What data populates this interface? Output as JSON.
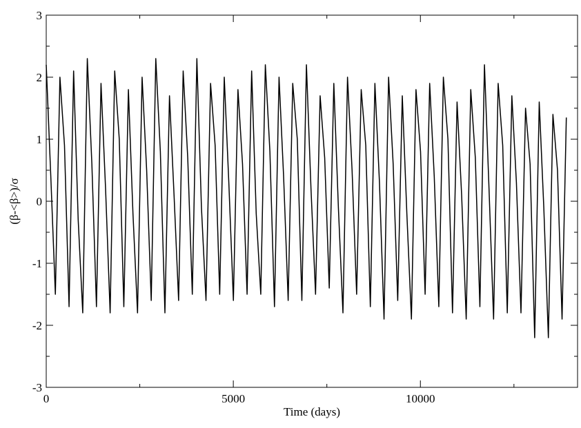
{
  "chart_data": {
    "type": "line",
    "x_label": "Time (days)",
    "y_label": "(β-<β>)/σ",
    "xlim": [
      0,
      14200
    ],
    "ylim": [
      -3,
      3
    ],
    "xticks": [
      0,
      5000,
      10000
    ],
    "yticks": [
      -3,
      -2,
      -1,
      0,
      1,
      2,
      3
    ],
    "xminor_ticks": [
      2500,
      7500,
      12500
    ],
    "yminor_ticks": [
      -2.5,
      -1.5,
      -0.5,
      0.5,
      1.5,
      2.5
    ],
    "x": [
      0,
      122,
      244,
      366,
      488,
      610,
      732,
      854,
      976,
      1098,
      1220,
      1342,
      1464,
      1586,
      1708,
      1830,
      1952,
      2074,
      2196,
      2318,
      2440,
      2562,
      2684,
      2806,
      2928,
      3050,
      3172,
      3294,
      3416,
      3538,
      3660,
      3782,
      3904,
      4026,
      4148,
      4270,
      4392,
      4514,
      4636,
      4758,
      4880,
      5002,
      5124,
      5246,
      5368,
      5490,
      5612,
      5734,
      5856,
      5978,
      6100,
      6222,
      6344,
      6466,
      6588,
      6710,
      6832,
      6954,
      7076,
      7198,
      7320,
      7442,
      7564,
      7686,
      7808,
      7930,
      8052,
      8174,
      8296,
      8418,
      8540,
      8662,
      8784,
      8906,
      9028,
      9150,
      9272,
      9394,
      9516,
      9638,
      9760,
      9882,
      10004,
      10126,
      10248,
      10370,
      10492,
      10614,
      10736,
      10858,
      10980,
      11102,
      11224,
      11346,
      11468,
      11590,
      11712,
      11834,
      11956,
      12078,
      12200,
      12322,
      12444,
      12566,
      12688,
      12810,
      12932,
      13054,
      13176,
      13298,
      13420,
      13542,
      13664,
      13786,
      13900
    ],
    "series": [
      {
        "color": "#000000",
        "values": [
          2.2,
          0.4,
          -1.5,
          2.0,
          0.9,
          -1.7,
          2.1,
          -0.3,
          -1.8,
          2.3,
          0.6,
          -1.7,
          1.9,
          0.2,
          -1.8,
          2.1,
          1.0,
          -1.7,
          1.8,
          -0.2,
          -1.8,
          2.0,
          0.5,
          -1.6,
          2.3,
          0.8,
          -1.8,
          1.7,
          0.1,
          -1.6,
          2.1,
          0.7,
          -1.5,
          2.3,
          -0.1,
          -1.6,
          1.9,
          0.9,
          -1.5,
          2.0,
          0.3,
          -1.6,
          1.8,
          0.6,
          -1.5,
          2.1,
          -0.2,
          -1.5,
          2.2,
          0.8,
          -1.7,
          2.0,
          0.4,
          -1.6,
          1.9,
          1.0,
          -1.6,
          2.2,
          0.2,
          -1.5,
          1.7,
          0.7,
          -1.4,
          1.9,
          -0.1,
          -1.8,
          2.0,
          0.5,
          -1.5,
          1.8,
          0.9,
          -1.7,
          1.9,
          0.3,
          -1.9,
          2.0,
          0.6,
          -1.6,
          1.7,
          -0.2,
          -1.9,
          1.8,
          0.8,
          -1.5,
          1.9,
          0.4,
          -1.7,
          2.0,
          1.0,
          -1.8,
          1.6,
          0.1,
          -1.9,
          1.8,
          0.7,
          -1.7,
          2.2,
          0.2,
          -1.9,
          1.9,
          0.9,
          -1.8,
          1.7,
          0.3,
          -1.8,
          1.5,
          0.6,
          -2.2,
          1.6,
          -0.1,
          -2.2,
          1.4,
          0.5,
          -1.9,
          1.35
        ]
      }
    ]
  }
}
